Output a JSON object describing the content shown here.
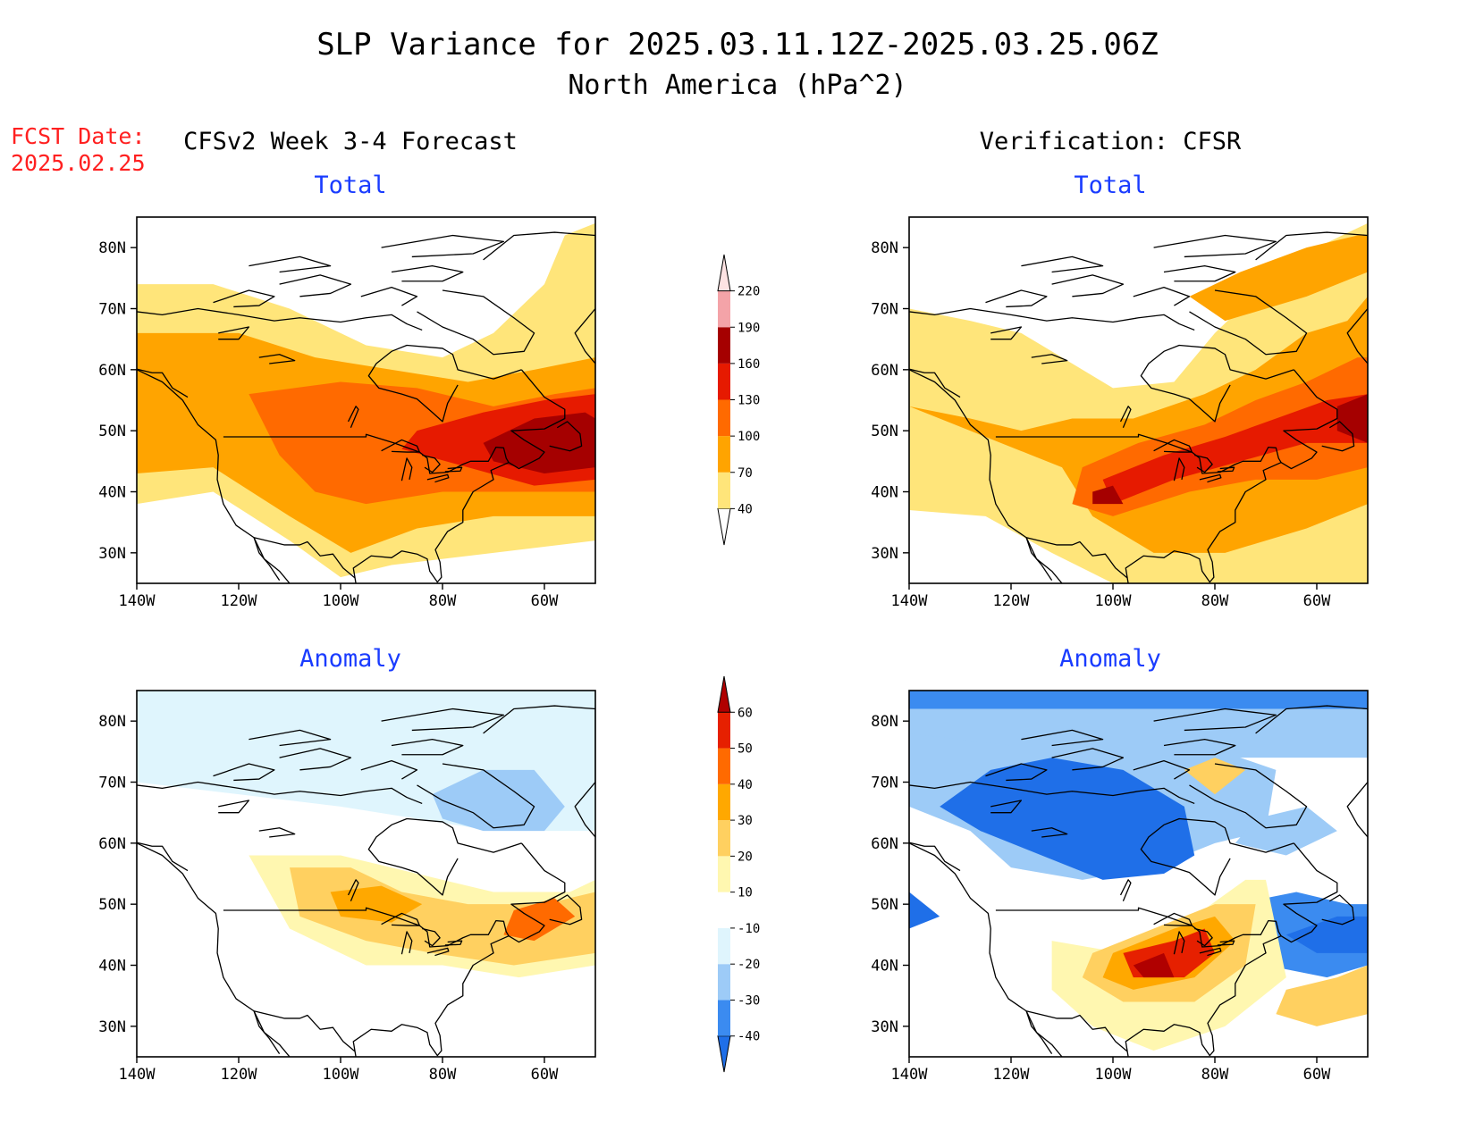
{
  "header": {
    "title": "SLP Variance for 2025.03.11.12Z-2025.03.25.06Z",
    "subtitle": "North America (hPa^2)",
    "fcst_label": "FCST Date:",
    "fcst_date": "2025.02.25"
  },
  "columns": {
    "left": "CFSv2 Week 3-4 Forecast",
    "right": "Verification: CFSR"
  },
  "panels": [
    {
      "id": "fcst-total",
      "title": "Total",
      "field": "total",
      "source": "forecast"
    },
    {
      "id": "cfsr-total",
      "title": "Total",
      "field": "total",
      "source": "verification"
    },
    {
      "id": "fcst-anomaly",
      "title": "Anomaly",
      "field": "anomaly",
      "source": "forecast"
    },
    {
      "id": "cfsr-anomaly",
      "title": "Anomaly",
      "field": "anomaly",
      "source": "verification"
    }
  ],
  "axes": {
    "lat_ticks": [
      "80N",
      "70N",
      "60N",
      "50N",
      "40N",
      "30N"
    ],
    "lon_ticks": [
      "140W",
      "120W",
      "100W",
      "80W",
      "60W"
    ],
    "lat_range": [
      25,
      85
    ],
    "lon_range": [
      -140,
      -50
    ]
  },
  "colorbars": {
    "total": {
      "levels": [
        "40",
        "70",
        "100",
        "130",
        "160",
        "190",
        "220"
      ],
      "colors": [
        "#ffffff",
        "#ffe57a",
        "#ffa400",
        "#ff6a00",
        "#e61a00",
        "#a50000",
        "#f4a3a8",
        "#fde3e3"
      ]
    },
    "anomaly": {
      "levels": [
        "-40",
        "-30",
        "-20",
        "-10",
        "10",
        "20",
        "30",
        "40",
        "50",
        "60"
      ],
      "colors": [
        "#1f6fe8",
        "#3b8bf0",
        "#9dcbf7",
        "#dff5fd",
        "#ffffff",
        "#fff7b0",
        "#ffd060",
        "#ffa800",
        "#ff6a00",
        "#e62000",
        "#b00000"
      ]
    }
  }
}
